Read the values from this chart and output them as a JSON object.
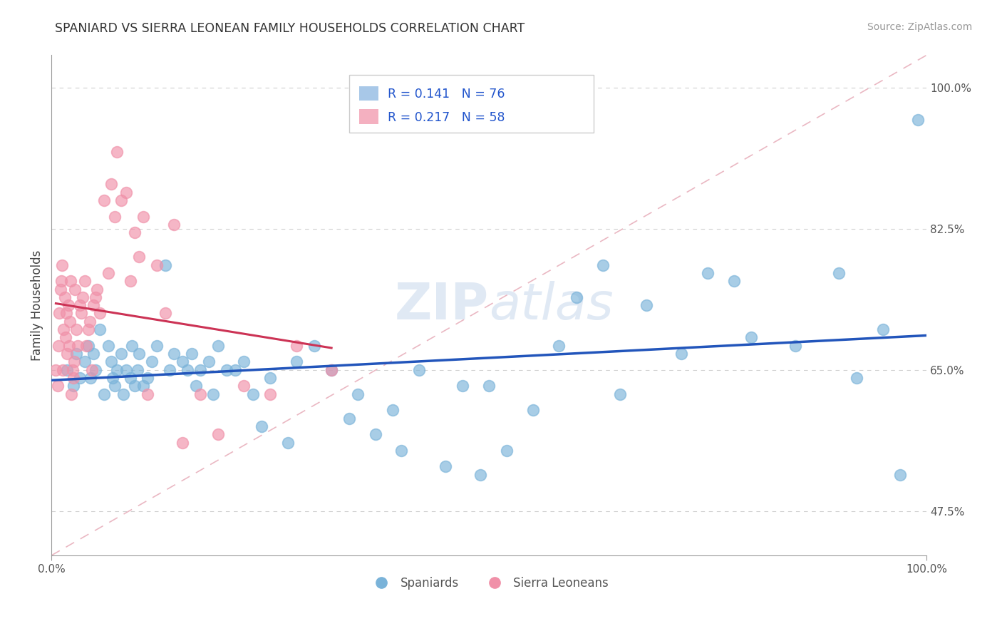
{
  "title": "SPANIARD VS SIERRA LEONEAN FAMILY HOUSEHOLDS CORRELATION CHART",
  "source_text": "Source: ZipAtlas.com",
  "ylabel": "Family Households",
  "xlim": [
    0,
    1
  ],
  "ylim": [
    0.42,
    1.04
  ],
  "yticks": [
    0.475,
    0.65,
    0.825,
    1.0
  ],
  "ytick_labels": [
    "47.5%",
    "65.0%",
    "82.5%",
    "100.0%"
  ],
  "watermark": "ZIPatlas",
  "spaniards_color": "#7ab3d9",
  "sierra_color": "#f090a8",
  "blue_line_color": "#2255bb",
  "pink_line_color": "#cc3355",
  "diag_line_color": "#e8b0bc",
  "grid_color": "#d0d0d0",
  "spaniards_x": [
    0.032,
    0.028,
    0.018,
    0.025,
    0.038,
    0.042,
    0.045,
    0.048,
    0.05,
    0.055,
    0.06,
    0.065,
    0.07,
    0.068,
    0.072,
    0.075,
    0.08,
    0.082,
    0.085,
    0.09,
    0.092,
    0.095,
    0.098,
    0.1,
    0.105,
    0.11,
    0.115,
    0.12,
    0.13,
    0.135,
    0.14,
    0.15,
    0.155,
    0.16,
    0.165,
    0.17,
    0.18,
    0.185,
    0.19,
    0.2,
    0.21,
    0.22,
    0.23,
    0.24,
    0.25,
    0.27,
    0.28,
    0.3,
    0.32,
    0.34,
    0.35,
    0.37,
    0.39,
    0.4,
    0.42,
    0.45,
    0.47,
    0.49,
    0.5,
    0.52,
    0.55,
    0.58,
    0.6,
    0.63,
    0.65,
    0.68,
    0.72,
    0.75,
    0.78,
    0.8,
    0.85,
    0.9,
    0.92,
    0.95,
    0.97,
    0.99
  ],
  "spaniards_y": [
    0.64,
    0.67,
    0.65,
    0.63,
    0.66,
    0.68,
    0.64,
    0.67,
    0.65,
    0.7,
    0.62,
    0.68,
    0.64,
    0.66,
    0.63,
    0.65,
    0.67,
    0.62,
    0.65,
    0.64,
    0.68,
    0.63,
    0.65,
    0.67,
    0.63,
    0.64,
    0.66,
    0.68,
    0.78,
    0.65,
    0.67,
    0.66,
    0.65,
    0.67,
    0.63,
    0.65,
    0.66,
    0.62,
    0.68,
    0.65,
    0.65,
    0.66,
    0.62,
    0.58,
    0.64,
    0.56,
    0.66,
    0.68,
    0.65,
    0.59,
    0.62,
    0.57,
    0.6,
    0.55,
    0.65,
    0.53,
    0.63,
    0.52,
    0.63,
    0.55,
    0.6,
    0.68,
    0.74,
    0.78,
    0.62,
    0.73,
    0.67,
    0.77,
    0.76,
    0.69,
    0.68,
    0.77,
    0.64,
    0.7,
    0.52,
    0.96
  ],
  "sierra_x": [
    0.005,
    0.007,
    0.008,
    0.009,
    0.01,
    0.011,
    0.012,
    0.013,
    0.014,
    0.015,
    0.016,
    0.017,
    0.018,
    0.019,
    0.02,
    0.021,
    0.022,
    0.023,
    0.024,
    0.025,
    0.026,
    0.027,
    0.028,
    0.03,
    0.032,
    0.034,
    0.036,
    0.038,
    0.04,
    0.042,
    0.044,
    0.046,
    0.048,
    0.05,
    0.052,
    0.055,
    0.06,
    0.065,
    0.068,
    0.072,
    0.075,
    0.08,
    0.085,
    0.09,
    0.095,
    0.1,
    0.105,
    0.11,
    0.12,
    0.13,
    0.14,
    0.15,
    0.17,
    0.19,
    0.22,
    0.25,
    0.28,
    0.32
  ],
  "sierra_y": [
    0.65,
    0.63,
    0.68,
    0.72,
    0.75,
    0.76,
    0.78,
    0.65,
    0.7,
    0.74,
    0.69,
    0.72,
    0.67,
    0.73,
    0.68,
    0.71,
    0.76,
    0.62,
    0.65,
    0.64,
    0.66,
    0.75,
    0.7,
    0.68,
    0.73,
    0.72,
    0.74,
    0.76,
    0.68,
    0.7,
    0.71,
    0.65,
    0.73,
    0.74,
    0.75,
    0.72,
    0.86,
    0.77,
    0.88,
    0.84,
    0.92,
    0.86,
    0.87,
    0.76,
    0.82,
    0.79,
    0.84,
    0.62,
    0.78,
    0.72,
    0.83,
    0.56,
    0.62,
    0.57,
    0.63,
    0.62,
    0.68,
    0.65
  ]
}
